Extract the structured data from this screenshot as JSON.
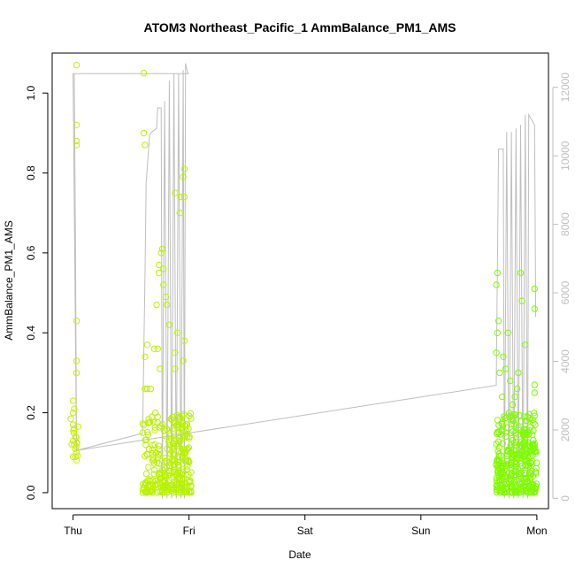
{
  "chart_data": {
    "type": "scatter",
    "title": "ATOM3 Northeast_Pacific_1 AmmBalance_PM1_AMS",
    "xlabel": "Date",
    "ylabel": "AmmBalance_PM1_AMS",
    "x_tick_labels": [
      "Thu",
      "Fri",
      "Sat",
      "Sun",
      "Mon"
    ],
    "x_tick_values": [
      0,
      1,
      2,
      3,
      4
    ],
    "xlim": [
      -0.18,
      4.1
    ],
    "ylim": [
      -0.04,
      1.1
    ],
    "y_ticks": [
      0.0,
      0.2,
      0.4,
      0.6,
      0.8,
      1.0
    ],
    "y_tick_labels": [
      "0.0",
      "0.2",
      "0.4",
      "0.6",
      "0.8",
      "1.0"
    ],
    "y2_ticks": [
      0,
      2000,
      4000,
      6000,
      8000,
      10000,
      12000
    ],
    "y2_tick_labels": [
      "0",
      "2000",
      "4000",
      "6000",
      "8000",
      "10000",
      "12000"
    ],
    "y2lim": [
      -300,
      13000
    ],
    "grid": false,
    "colors": {
      "altitude_line": "#bebebe",
      "point_early": "#c8f000",
      "point_late": "#7cfc00",
      "frame": "#000000"
    },
    "series": [
      {
        "kind": "points",
        "clusters": [
          {
            "x_range": [
              -0.02,
              0.05
            ],
            "points": [
              [
                0.03,
                1.07
              ],
              [
                0.03,
                0.92
              ],
              [
                0.03,
                0.88
              ],
              [
                0.03,
                0.87
              ],
              [
                0.03,
                0.43
              ],
              [
                0.03,
                0.33
              ],
              [
                0.03,
                0.3
              ],
              [
                0.0,
                0.23
              ],
              [
                0.01,
                0.21
              ],
              [
                0.0,
                0.2
              ],
              [
                0.0,
                0.17
              ],
              [
                0.01,
                0.16
              ],
              [
                0.02,
                0.14
              ],
              [
                0.0,
                0.13
              ],
              [
                0.01,
                0.12
              ],
              [
                0.02,
                0.11
              ],
              [
                0.03,
                0.1
              ],
              [
                0.02,
                0.09
              ]
            ],
            "y_dense": [
              0.08,
              0.2
            ],
            "n_dense": 12
          },
          {
            "x_range": [
              0.6,
              1.02
            ],
            "points": [
              [
                0.61,
                1.05
              ],
              [
                0.61,
                0.9
              ],
              [
                0.62,
                0.87
              ],
              [
                0.62,
                0.34
              ],
              [
                0.64,
                0.37
              ],
              [
                0.62,
                0.26
              ],
              [
                0.64,
                0.26
              ],
              [
                0.72,
                0.47
              ],
              [
                0.74,
                0.57
              ],
              [
                0.74,
                0.55
              ],
              [
                0.76,
                0.6
              ],
              [
                0.77,
                0.61
              ],
              [
                0.78,
                0.52
              ],
              [
                0.8,
                0.49
              ],
              [
                0.73,
                0.36
              ],
              [
                0.75,
                0.31
              ],
              [
                0.78,
                0.56
              ],
              [
                0.88,
                0.75
              ],
              [
                0.92,
                0.7
              ],
              [
                0.93,
                0.74
              ],
              [
                0.95,
                0.79
              ],
              [
                0.96,
                0.81
              ],
              [
                0.96,
                0.74
              ],
              [
                0.96,
                0.38
              ],
              [
                0.95,
                0.33
              ],
              [
                0.88,
                0.35
              ],
              [
                0.9,
                0.4
              ],
              [
                0.88,
                0.31
              ],
              [
                0.83,
                0.42
              ],
              [
                0.81,
                0.47
              ],
              [
                0.7,
                0.36
              ],
              [
                0.67,
                0.26
              ],
              [
                0.71,
                0.2
              ],
              [
                0.73,
                0.19
              ]
            ],
            "y_dense": [
              0.0,
              0.2
            ],
            "n_dense": 280
          },
          {
            "x_range": [
              3.65,
              4.0
            ],
            "points": [
              [
                3.66,
                0.55
              ],
              [
                3.65,
                0.52
              ],
              [
                3.67,
                0.43
              ],
              [
                3.66,
                0.4
              ],
              [
                3.65,
                0.35
              ],
              [
                3.68,
                0.3
              ],
              [
                3.71,
                0.34
              ],
              [
                3.73,
                0.31
              ],
              [
                3.75,
                0.4
              ],
              [
                3.77,
                0.28
              ],
              [
                3.79,
                0.22
              ],
              [
                3.84,
                0.3
              ],
              [
                3.86,
                0.55
              ],
              [
                3.87,
                0.48
              ],
              [
                3.9,
                0.37
              ],
              [
                3.98,
                0.51
              ],
              [
                3.98,
                0.46
              ],
              [
                3.98,
                0.27
              ],
              [
                3.98,
                0.25
              ],
              [
                3.7,
                0.24
              ],
              [
                3.76,
                0.2
              ],
              [
                3.81,
                0.24
              ],
              [
                3.83,
                0.26
              ],
              [
                3.92,
                0.19
              ]
            ],
            "y_dense": [
              0.0,
              0.2
            ],
            "n_dense": 320
          }
        ]
      },
      {
        "kind": "line",
        "name": "",
        "axis": "right",
        "points": [
          [
            0.0,
            12400
          ],
          [
            0.01,
            12400
          ],
          [
            0.02,
            8000
          ],
          [
            0.03,
            1400
          ],
          [
            0.6,
            1900
          ],
          [
            0.62,
            6500
          ],
          [
            0.63,
            9200
          ],
          [
            0.66,
            10600
          ],
          [
            0.68,
            10700
          ],
          [
            0.72,
            10800
          ],
          [
            0.73,
            11400
          ],
          [
            0.76,
            11400
          ],
          [
            0.77,
            0
          ],
          [
            0.79,
            11600
          ],
          [
            0.81,
            0
          ],
          [
            0.83,
            12200
          ],
          [
            0.85,
            0
          ],
          [
            0.87,
            12400
          ],
          [
            0.89,
            0
          ],
          [
            0.91,
            12400
          ],
          [
            0.93,
            0
          ],
          [
            0.95,
            12500
          ],
          [
            0.96,
            0
          ],
          [
            0.97,
            12400
          ],
          [
            1.0,
            12400
          ],
          [
            0.97,
            12400
          ],
          [
            0.97,
            12700
          ],
          [
            0.99,
            12400
          ],
          [
            0.0,
            12400
          ],
          [
            0.03,
            1400
          ],
          [
            3.65,
            3300
          ],
          [
            3.67,
            10200
          ],
          [
            3.71,
            10200
          ],
          [
            3.72,
            0
          ],
          [
            3.74,
            10700
          ],
          [
            3.76,
            0
          ],
          [
            3.78,
            10700
          ],
          [
            3.8,
            0
          ],
          [
            3.82,
            10800
          ],
          [
            3.84,
            0
          ],
          [
            3.86,
            10900
          ],
          [
            3.88,
            0
          ],
          [
            3.9,
            11200
          ],
          [
            3.92,
            0
          ],
          [
            3.93,
            11200
          ],
          [
            3.98,
            10900
          ],
          [
            3.99,
            5300
          ]
        ]
      }
    ]
  }
}
